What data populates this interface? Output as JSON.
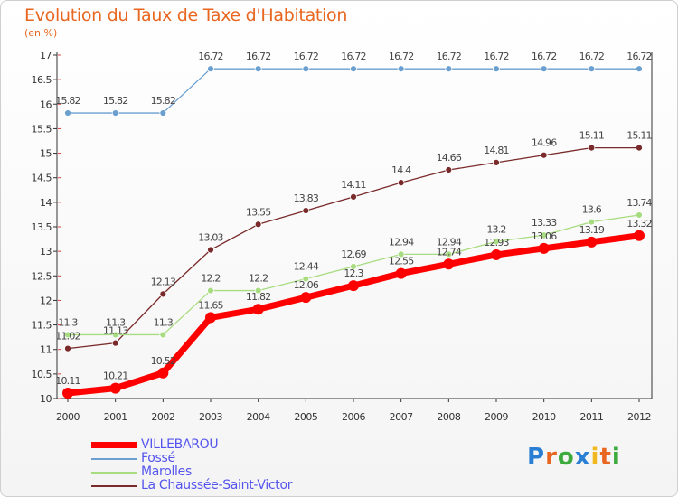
{
  "chart_data": {
    "type": "line",
    "title": "Evolution du Taux de Taxe d'Habitation",
    "subtitle": "(en %)",
    "x": [
      "2000",
      "2001",
      "2002",
      "2003",
      "2004",
      "2005",
      "2006",
      "2007",
      "2008",
      "2009",
      "2010",
      "2011",
      "2012"
    ],
    "ylim": [
      10,
      17
    ],
    "yticks": [
      "10",
      "10.5",
      "11",
      "11.5",
      "12",
      "12.5",
      "13",
      "13.5",
      "14",
      "14.5",
      "15",
      "15.5",
      "16",
      "16.5",
      "17"
    ],
    "grid": false,
    "legend_position": "bottom-left",
    "series": [
      {
        "name": "VILLEBAROU",
        "color": "#ff0000",
        "values": [
          10.11,
          10.21,
          10.52,
          11.65,
          11.82,
          12.06,
          12.3,
          12.55,
          12.74,
          12.93,
          13.06,
          13.19,
          13.32
        ],
        "labels": [
          "10.11",
          "10.21",
          "10.52",
          "11.65",
          "11.82",
          "12.06",
          "12.3",
          "12.55",
          "12.74",
          "12.93",
          "13.06",
          "13.19",
          "13.32"
        ]
      },
      {
        "name": "Fossé",
        "color": "#6a9fd0",
        "values": [
          15.82,
          15.82,
          15.82,
          16.72,
          16.72,
          16.72,
          16.72,
          16.72,
          16.72,
          16.72,
          16.72,
          16.72,
          16.72
        ],
        "labels": [
          "15.82",
          "15.82",
          "15.82",
          "16.72",
          "16.72",
          "16.72",
          "16.72",
          "16.72",
          "16.72",
          "16.72",
          "16.72",
          "16.72",
          "16.72"
        ]
      },
      {
        "name": "Marolles",
        "color": "#a8dc80",
        "values": [
          11.3,
          11.3,
          11.3,
          12.2,
          12.2,
          12.44,
          12.69,
          12.94,
          12.94,
          13.2,
          13.33,
          13.6,
          13.74
        ],
        "labels": [
          "11.3",
          "11.3",
          "11.3",
          "12.2",
          "12.2",
          "12.44",
          "12.69",
          "12.94",
          "12.94",
          "13.2",
          "13.33",
          "13.6",
          "13.74"
        ]
      },
      {
        "name": "La Chaussée-Saint-Victor",
        "color": "#7a2a2a",
        "values": [
          11.02,
          11.13,
          12.13,
          13.03,
          13.55,
          13.83,
          14.11,
          14.4,
          14.66,
          14.81,
          14.96,
          15.11,
          15.11
        ],
        "labels": [
          "11.02",
          "11.13",
          "12.13",
          "13.03",
          "13.55",
          "13.83",
          "14.11",
          "14.4",
          "14.66",
          "14.81",
          "14.96",
          "15.11",
          "15.11"
        ]
      }
    ]
  },
  "legend": {
    "items": [
      "VILLEBAROU",
      "Fossé",
      "Marolles",
      "La Chaussée-Saint-Victor"
    ],
    "colors": [
      "#ff0000",
      "#6a9fd0",
      "#a8dc80",
      "#7a2a2a"
    ]
  },
  "logo": {
    "letters": [
      "P",
      "r",
      "o",
      "x",
      "i",
      "t",
      "i"
    ],
    "colors": [
      "#2a7fd4",
      "#e8661f",
      "#3daa3d",
      "#2a7fd4",
      "#f0b81e",
      "#e8661f",
      "#3daa3d"
    ]
  }
}
